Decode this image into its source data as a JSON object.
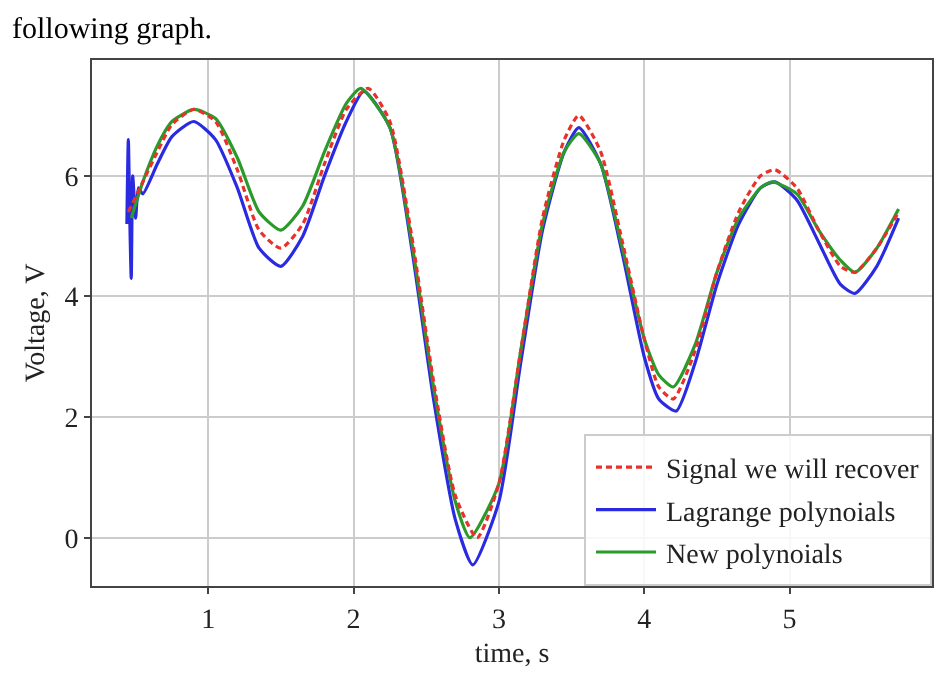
{
  "chart_data": {
    "type": "line",
    "xlabel": "time, s",
    "ylabel": "Voltage, V",
    "annotations": [
      "following graph."
    ],
    "xlim": [
      0.2,
      5.98
    ],
    "xticks": [
      1,
      2,
      3,
      4,
      5
    ],
    "ylim": [
      -0.8,
      7.92
    ],
    "yticks": [
      0,
      2,
      4,
      6
    ],
    "grid": true,
    "legend": "bottom right",
    "series": [
      {
        "name": "Signal we will recover",
        "color": "#e8312a",
        "line_style": "dashed",
        "x": [
          0.45,
          0.55,
          0.65,
          0.75,
          0.9,
          1.05,
          1.2,
          1.35,
          1.5,
          1.65,
          1.8,
          1.95,
          2.1,
          2.25,
          2.4,
          2.55,
          2.7,
          2.85,
          3.0,
          3.15,
          3.3,
          3.45,
          3.55,
          3.7,
          3.85,
          4.0,
          4.1,
          4.2,
          4.35,
          4.5,
          4.65,
          4.8,
          4.9,
          5.05,
          5.2,
          5.35,
          5.45,
          5.6,
          5.75
        ],
        "values": [
          5.4,
          5.9,
          6.4,
          6.85,
          7.1,
          6.9,
          6.1,
          5.1,
          4.8,
          5.2,
          6.2,
          7.1,
          7.45,
          6.9,
          5.0,
          2.6,
          0.7,
          0.0,
          0.9,
          3.1,
          5.3,
          6.6,
          7.0,
          6.4,
          4.9,
          3.3,
          2.5,
          2.3,
          3.1,
          4.4,
          5.4,
          6.0,
          6.1,
          5.8,
          5.1,
          4.5,
          4.4,
          4.8,
          5.4
        ]
      },
      {
        "name": "Lagrange polynoials",
        "color": "#2a2ae0",
        "line_style": "solid",
        "x": [
          0.44,
          0.45,
          0.46,
          0.47,
          0.48,
          0.5,
          0.52,
          0.55,
          0.65,
          0.75,
          0.9,
          1.05,
          1.2,
          1.35,
          1.5,
          1.65,
          1.8,
          1.95,
          2.07,
          2.25,
          2.4,
          2.55,
          2.7,
          2.82,
          3.0,
          3.15,
          3.3,
          3.45,
          3.55,
          3.7,
          3.85,
          4.0,
          4.1,
          4.22,
          4.35,
          4.5,
          4.65,
          4.8,
          4.9,
          5.05,
          5.2,
          5.35,
          5.45,
          5.6,
          5.75
        ],
        "values": [
          5.2,
          6.6,
          5.3,
          4.3,
          6.0,
          5.3,
          5.8,
          5.7,
          6.2,
          6.65,
          6.9,
          6.6,
          5.8,
          4.8,
          4.5,
          5.0,
          6.0,
          6.9,
          7.4,
          6.8,
          4.8,
          2.3,
          0.3,
          -0.45,
          0.6,
          2.9,
          5.1,
          6.4,
          6.8,
          6.2,
          4.7,
          3.0,
          2.3,
          2.1,
          2.9,
          4.2,
          5.2,
          5.8,
          5.9,
          5.6,
          4.9,
          4.2,
          4.05,
          4.5,
          5.3
        ]
      },
      {
        "name": "New polynoials",
        "color": "#2a9a2a",
        "line_style": "solid",
        "x": [
          0.47,
          0.55,
          0.65,
          0.75,
          0.9,
          1.05,
          1.2,
          1.35,
          1.5,
          1.65,
          1.8,
          1.95,
          2.05,
          2.25,
          2.4,
          2.55,
          2.7,
          2.8,
          3.0,
          3.15,
          3.3,
          3.45,
          3.55,
          3.7,
          3.85,
          4.0,
          4.1,
          4.2,
          4.35,
          4.5,
          4.65,
          4.8,
          4.88,
          5.05,
          5.2,
          5.35,
          5.45,
          5.6,
          5.75
        ],
        "values": [
          5.3,
          5.9,
          6.5,
          6.9,
          7.1,
          6.95,
          6.3,
          5.4,
          5.1,
          5.5,
          6.4,
          7.2,
          7.45,
          6.8,
          4.9,
          2.5,
          0.6,
          0.0,
          0.9,
          3.1,
          5.2,
          6.4,
          6.7,
          6.2,
          4.8,
          3.3,
          2.7,
          2.5,
          3.2,
          4.4,
          5.3,
          5.8,
          5.9,
          5.7,
          5.1,
          4.6,
          4.4,
          4.8,
          5.45
        ]
      }
    ]
  }
}
